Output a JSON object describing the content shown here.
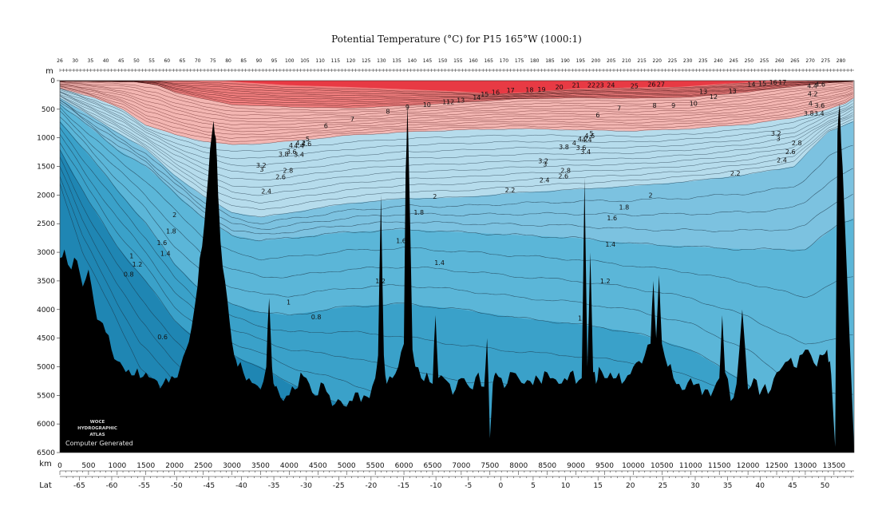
{
  "chart_data": {
    "type": "heatmap",
    "title": "Potential Temperature (°C) for P15 165°W (1000:1)",
    "y_unit": "m",
    "x_unit": "km",
    "lat_label": "Lat",
    "xlim": [
      0,
      13850
    ],
    "ylim": [
      0,
      6500
    ],
    "lat_range_at_xlim": [
      -68,
      54.5
    ],
    "depth_ticks": [
      "0",
      "500",
      "1000",
      "1500",
      "2000",
      "2500",
      "3000",
      "3500",
      "4000",
      "4500",
      "5000",
      "5500",
      "6000",
      "6500"
    ],
    "depth_tick_values": [
      0,
      500,
      1000,
      1500,
      2000,
      2500,
      3000,
      3500,
      4000,
      4500,
      5000,
      5500,
      6000,
      6500
    ],
    "km_ticks": [
      "0",
      "500",
      "1000",
      "1500",
      "2000",
      "2500",
      "3000",
      "3500",
      "4000",
      "4500",
      "5000",
      "5500",
      "6000",
      "6500",
      "7000",
      "7500",
      "8000",
      "8500",
      "9000",
      "9500",
      "10000",
      "10500",
      "11000",
      "11500",
      "12000",
      "12500",
      "13000",
      "13500"
    ],
    "km_tick_values": [
      0,
      500,
      1000,
      1500,
      2000,
      2500,
      3000,
      3500,
      4000,
      4500,
      5000,
      5500,
      6000,
      6500,
      7000,
      7500,
      8000,
      8500,
      9000,
      9500,
      10000,
      10500,
      11000,
      11500,
      12000,
      12500,
      13000,
      13500
    ],
    "lat_ticks": [
      "-65",
      "-60",
      "-55",
      "-50",
      "-45",
      "-40",
      "-35",
      "-30",
      "-25",
      "-20",
      "-15",
      "-10",
      "-5",
      "0",
      "5",
      "10",
      "15",
      "20",
      "25",
      "30",
      "35",
      "40",
      "45",
      "50"
    ],
    "lat_tick_values": [
      -65,
      -60,
      -55,
      -50,
      -45,
      -40,
      -35,
      -30,
      -25,
      -20,
      -15,
      -10,
      -5,
      0,
      5,
      10,
      15,
      20,
      25,
      30,
      35,
      40,
      45,
      50
    ],
    "stations": [
      "26",
      "30",
      "35",
      "40",
      "45",
      "50",
      "55",
      "60",
      "65",
      "70",
      "75",
      "80",
      "85",
      "90",
      "95",
      "100",
      "105",
      "110",
      "115",
      "120",
      "125",
      "130",
      "135",
      "140",
      "145",
      "150",
      "155",
      "160",
      "165",
      "170",
      "175",
      "180",
      "185",
      "190",
      "195",
      "200",
      "205",
      "210",
      "215",
      "220",
      "225",
      "230",
      "235",
      "240",
      "245",
      "250",
      "255",
      "260",
      "265",
      "270",
      "275",
      "280"
    ],
    "contour_levels": [
      "0.6",
      "0.8",
      "1",
      "1.2",
      "1.4",
      "1.6",
      "1.8",
      "2",
      "2.2",
      "2.4",
      "2.6",
      "2.8",
      "3",
      "3.2",
      "3.4",
      "3.6",
      "3.8",
      "4",
      "4.2",
      "4.4",
      "4.6",
      "4.8",
      "5",
      "6",
      "7",
      "8",
      "9",
      "10",
      "11",
      "12",
      "13",
      "14",
      "15",
      "16",
      "17",
      "18",
      "19",
      "20",
      "21",
      "22",
      "23",
      "24",
      "25",
      "26",
      "27"
    ],
    "contour_labels": [
      {
        "text": "0.6",
        "km": 1790,
        "depth": 4480
      },
      {
        "text": "0.8",
        "km": 1200,
        "depth": 3385
      },
      {
        "text": "0.8",
        "km": 4470,
        "depth": 4130
      },
      {
        "text": "1",
        "km": 1250,
        "depth": 3060
      },
      {
        "text": "1",
        "km": 3990,
        "depth": 3870
      },
      {
        "text": "1",
        "km": 9070,
        "depth": 4150
      },
      {
        "text": "1.2",
        "km": 1350,
        "depth": 3210
      },
      {
        "text": "1.2",
        "km": 5590,
        "depth": 3500
      },
      {
        "text": "1.2",
        "km": 9510,
        "depth": 3500
      },
      {
        "text": "1.4",
        "km": 1840,
        "depth": 3020
      },
      {
        "text": "1.4",
        "km": 6620,
        "depth": 3180
      },
      {
        "text": "1.4",
        "km": 9600,
        "depth": 2860
      },
      {
        "text": "1.6",
        "km": 1780,
        "depth": 2830
      },
      {
        "text": "1.6",
        "km": 5950,
        "depth": 2800
      },
      {
        "text": "1.6",
        "km": 9630,
        "depth": 2400
      },
      {
        "text": "1.8",
        "km": 1940,
        "depth": 2630
      },
      {
        "text": "1.8",
        "km": 6260,
        "depth": 2300
      },
      {
        "text": "1.8",
        "km": 9840,
        "depth": 2210
      },
      {
        "text": "2",
        "km": 2000,
        "depth": 2340
      },
      {
        "text": "2",
        "km": 6540,
        "depth": 2020
      },
      {
        "text": "2",
        "km": 10300,
        "depth": 2000
      },
      {
        "text": "2.2",
        "km": 7850,
        "depth": 1910
      },
      {
        "text": "2.2",
        "km": 11780,
        "depth": 1620
      },
      {
        "text": "2.4",
        "km": 3600,
        "depth": 1930
      },
      {
        "text": "2.4",
        "km": 8450,
        "depth": 1740
      },
      {
        "text": "2.4",
        "km": 12590,
        "depth": 1390
      },
      {
        "text": "2.6",
        "km": 3850,
        "depth": 1680
      },
      {
        "text": "2.6",
        "km": 8780,
        "depth": 1670
      },
      {
        "text": "2.6",
        "km": 12740,
        "depth": 1240
      },
      {
        "text": "2.8",
        "km": 3980,
        "depth": 1570
      },
      {
        "text": "2.8",
        "km": 8820,
        "depth": 1570
      },
      {
        "text": "2.8",
        "km": 12850,
        "depth": 1090
      },
      {
        "text": "3",
        "km": 3520,
        "depth": 1550
      },
      {
        "text": "3",
        "km": 8460,
        "depth": 1460
      },
      {
        "text": "3",
        "km": 12530,
        "depth": 1010
      },
      {
        "text": "3.2",
        "km": 3510,
        "depth": 1480
      },
      {
        "text": "3.2",
        "km": 8430,
        "depth": 1400
      },
      {
        "text": "3.2",
        "km": 12490,
        "depth": 920
      },
      {
        "text": "3.4",
        "km": 4170,
        "depth": 1290
      },
      {
        "text": "3.4",
        "km": 9170,
        "depth": 1240
      },
      {
        "text": "3.4",
        "km": 13240,
        "depth": 570
      },
      {
        "text": "3.6",
        "km": 4040,
        "depth": 1240
      },
      {
        "text": "3.6",
        "km": 9090,
        "depth": 1170
      },
      {
        "text": "3.6",
        "km": 13250,
        "depth": 430
      },
      {
        "text": "3.8",
        "km": 3900,
        "depth": 1280
      },
      {
        "text": "3.8",
        "km": 8790,
        "depth": 1160
      },
      {
        "text": "3.8",
        "km": 13060,
        "depth": 570
      },
      {
        "text": "4",
        "km": 4030,
        "depth": 1130
      },
      {
        "text": "4",
        "km": 8970,
        "depth": 1090
      },
      {
        "text": "4",
        "km": 13090,
        "depth": 400
      },
      {
        "text": "4.2",
        "km": 4200,
        "depth": 1090
      },
      {
        "text": "4.2",
        "km": 9120,
        "depth": 1020
      },
      {
        "text": "4.2",
        "km": 13130,
        "depth": 230
      },
      {
        "text": "4.4",
        "km": 4170,
        "depth": 1140
      },
      {
        "text": "4.4",
        "km": 9190,
        "depth": 1030
      },
      {
        "text": "4.4",
        "km": 13120,
        "depth": 90
      },
      {
        "text": "4.6",
        "km": 4300,
        "depth": 1100
      },
      {
        "text": "4.6",
        "km": 9240,
        "depth": 960
      },
      {
        "text": "4.6",
        "km": 13260,
        "depth": 60
      },
      {
        "text": "5",
        "km": 4320,
        "depth": 1020
      },
      {
        "text": "5",
        "km": 9270,
        "depth": 920
      },
      {
        "text": "6",
        "km": 4640,
        "depth": 790
      },
      {
        "text": "6",
        "km": 9380,
        "depth": 600
      },
      {
        "text": "7",
        "km": 5100,
        "depth": 670
      },
      {
        "text": "7",
        "km": 9750,
        "depth": 480
      },
      {
        "text": "8",
        "km": 5720,
        "depth": 540
      },
      {
        "text": "8",
        "km": 10370,
        "depth": 430
      },
      {
        "text": "9",
        "km": 6060,
        "depth": 460
      },
      {
        "text": "9",
        "km": 10700,
        "depth": 430
      },
      {
        "text": "10",
        "km": 6400,
        "depth": 420
      },
      {
        "text": "10",
        "km": 11050,
        "depth": 400
      },
      {
        "text": "11",
        "km": 6740,
        "depth": 370
      },
      {
        "text": "12",
        "km": 6810,
        "depth": 370
      },
      {
        "text": "12",
        "km": 11400,
        "depth": 280
      },
      {
        "text": "13",
        "km": 6990,
        "depth": 340
      },
      {
        "text": "13",
        "km": 11220,
        "depth": 190
      },
      {
        "text": "13",
        "km": 11730,
        "depth": 180
      },
      {
        "text": "14",
        "km": 7270,
        "depth": 290
      },
      {
        "text": "14",
        "km": 12060,
        "depth": 60
      },
      {
        "text": "15",
        "km": 7410,
        "depth": 240
      },
      {
        "text": "15",
        "km": 12250,
        "depth": 50
      },
      {
        "text": "16",
        "km": 7600,
        "depth": 200
      },
      {
        "text": "16",
        "km": 12440,
        "depth": 30
      },
      {
        "text": "17",
        "km": 7860,
        "depth": 170
      },
      {
        "text": "17",
        "km": 12600,
        "depth": 30
      },
      {
        "text": "18",
        "km": 8190,
        "depth": 160
      },
      {
        "text": "19",
        "km": 8400,
        "depth": 150
      },
      {
        "text": "20",
        "km": 8710,
        "depth": 110
      },
      {
        "text": "21",
        "km": 9000,
        "depth": 80
      },
      {
        "text": "22",
        "km": 9270,
        "depth": 80
      },
      {
        "text": "23",
        "km": 9420,
        "depth": 80
      },
      {
        "text": "24",
        "km": 9610,
        "depth": 80
      },
      {
        "text": "25",
        "km": 10020,
        "depth": 90
      },
      {
        "text": "26",
        "km": 10320,
        "depth": 60
      },
      {
        "text": "27",
        "km": 10480,
        "depth": 60
      }
    ],
    "bathymetry": {
      "km": [
        0,
        80,
        200,
        300,
        400,
        500,
        600,
        700,
        800,
        900,
        1000,
        1100,
        1200,
        1300,
        1400,
        1500,
        1600,
        1700,
        1800,
        1900,
        2000,
        2100,
        2200,
        2300,
        2400,
        2480,
        2560,
        2620,
        2680,
        2720,
        2760,
        2800,
        2880,
        2960,
        3040,
        3100,
        3200,
        3300,
        3400,
        3500,
        3600,
        3650,
        3700,
        3750,
        3800,
        3900,
        4000,
        4100,
        4200,
        4300,
        4400,
        4500,
        4600,
        4700,
        4800,
        4900,
        5000,
        5100,
        5200,
        5300,
        5400,
        5500,
        5550,
        5600,
        5650,
        5700,
        5800,
        5900,
        6000,
        6030,
        6060,
        6090,
        6150,
        6200,
        6300,
        6400,
        6500,
        6550,
        6600,
        6700,
        6800,
        6900,
        7000,
        7100,
        7200,
        7300,
        7400,
        7450,
        7500,
        7550,
        7600,
        7700,
        7800,
        7900,
        8000,
        8100,
        8200,
        8300,
        8400,
        8500,
        8600,
        8700,
        8800,
        8900,
        9000,
        9100,
        9150,
        9200,
        9250,
        9300,
        9350,
        9400,
        9500,
        9600,
        9700,
        9800,
        9900,
        10000,
        10100,
        10200,
        10300,
        10350,
        10400,
        10450,
        10500,
        10600,
        10700,
        10800,
        10900,
        11000,
        11100,
        11200,
        11300,
        11400,
        11500,
        11550,
        11600,
        11700,
        11800,
        11900,
        12000,
        12100,
        12200,
        12300,
        12400,
        12500,
        12600,
        12700,
        12800,
        12900,
        13000,
        13100,
        13200,
        13300,
        13380,
        13430,
        13470,
        13520,
        13560,
        13600,
        13650,
        13850
      ],
      "depth": [
        3100,
        2950,
        3300,
        3150,
        3600,
        3300,
        3900,
        4200,
        4400,
        4700,
        4900,
        5000,
        5050,
        5150,
        5200,
        5100,
        5200,
        5250,
        5300,
        5280,
        5200,
        5000,
        4700,
        4300,
        3600,
        2900,
        2000,
        1200,
        700,
        1000,
        2000,
        2800,
        3500,
        4200,
        4800,
        5000,
        5100,
        5200,
        5300,
        5400,
        5000,
        3800,
        5000,
        5350,
        5400,
        5600,
        5500,
        5400,
        5100,
        5200,
        5450,
        5500,
        5300,
        5500,
        5650,
        5600,
        5700,
        5600,
        5450,
        5500,
        5550,
        5200,
        4800,
        2000,
        4800,
        5300,
        5200,
        5000,
        4600,
        1600,
        400,
        1600,
        4700,
        5000,
        5200,
        5100,
        5300,
        4100,
        5200,
        5200,
        5300,
        5400,
        5200,
        5300,
        5400,
        5100,
        5350,
        4500,
        6250,
        5300,
        5100,
        5200,
        5300,
        5100,
        5200,
        5300,
        5250,
        5150,
        5300,
        5100,
        5200,
        5300,
        5200,
        5100,
        5300,
        5200,
        1700,
        5000,
        3000,
        5100,
        5300,
        5000,
        5200,
        5100,
        5200,
        5300,
        5150,
        5000,
        4900,
        4800,
        4600,
        3500,
        4500,
        3400,
        4600,
        5000,
        5200,
        5300,
        5400,
        5200,
        5300,
        5500,
        5400,
        5400,
        5200,
        4100,
        5100,
        5600,
        5300,
        4000,
        5400,
        5200,
        5500,
        5300,
        5400,
        5100,
        5000,
        4900,
        5000,
        4800,
        4700,
        4800,
        5000,
        4800,
        4700,
        4900,
        5500,
        6400,
        900,
        400,
        1500,
        6400,
        6500,
        6500
      ]
    },
    "color_bands": [
      {
        "min": 0.4,
        "max": 0.6,
        "color": "#1f86b3"
      },
      {
        "min": 0.6,
        "max": 1.0,
        "color": "#3aa1c9"
      },
      {
        "min": 1.0,
        "max": 1.8,
        "color": "#5bb6d8"
      },
      {
        "min": 1.8,
        "max": 2.4,
        "color": "#7cc2e0"
      },
      {
        "min": 2.4,
        "max": 4.0,
        "color": "#b6dcec"
      },
      {
        "min": 4.0,
        "max": 10.0,
        "color": "#f3b6b2"
      },
      {
        "min": 10.0,
        "max": 18.0,
        "color": "#f07e7e"
      },
      {
        "min": 18.0,
        "max": 30.0,
        "color": "#e83a44"
      }
    ],
    "watermark": {
      "line1": "WOCE",
      "line2": "HYDROGRAPHIC",
      "line3": "ATLAS",
      "line4": "Computer Generated"
    }
  }
}
